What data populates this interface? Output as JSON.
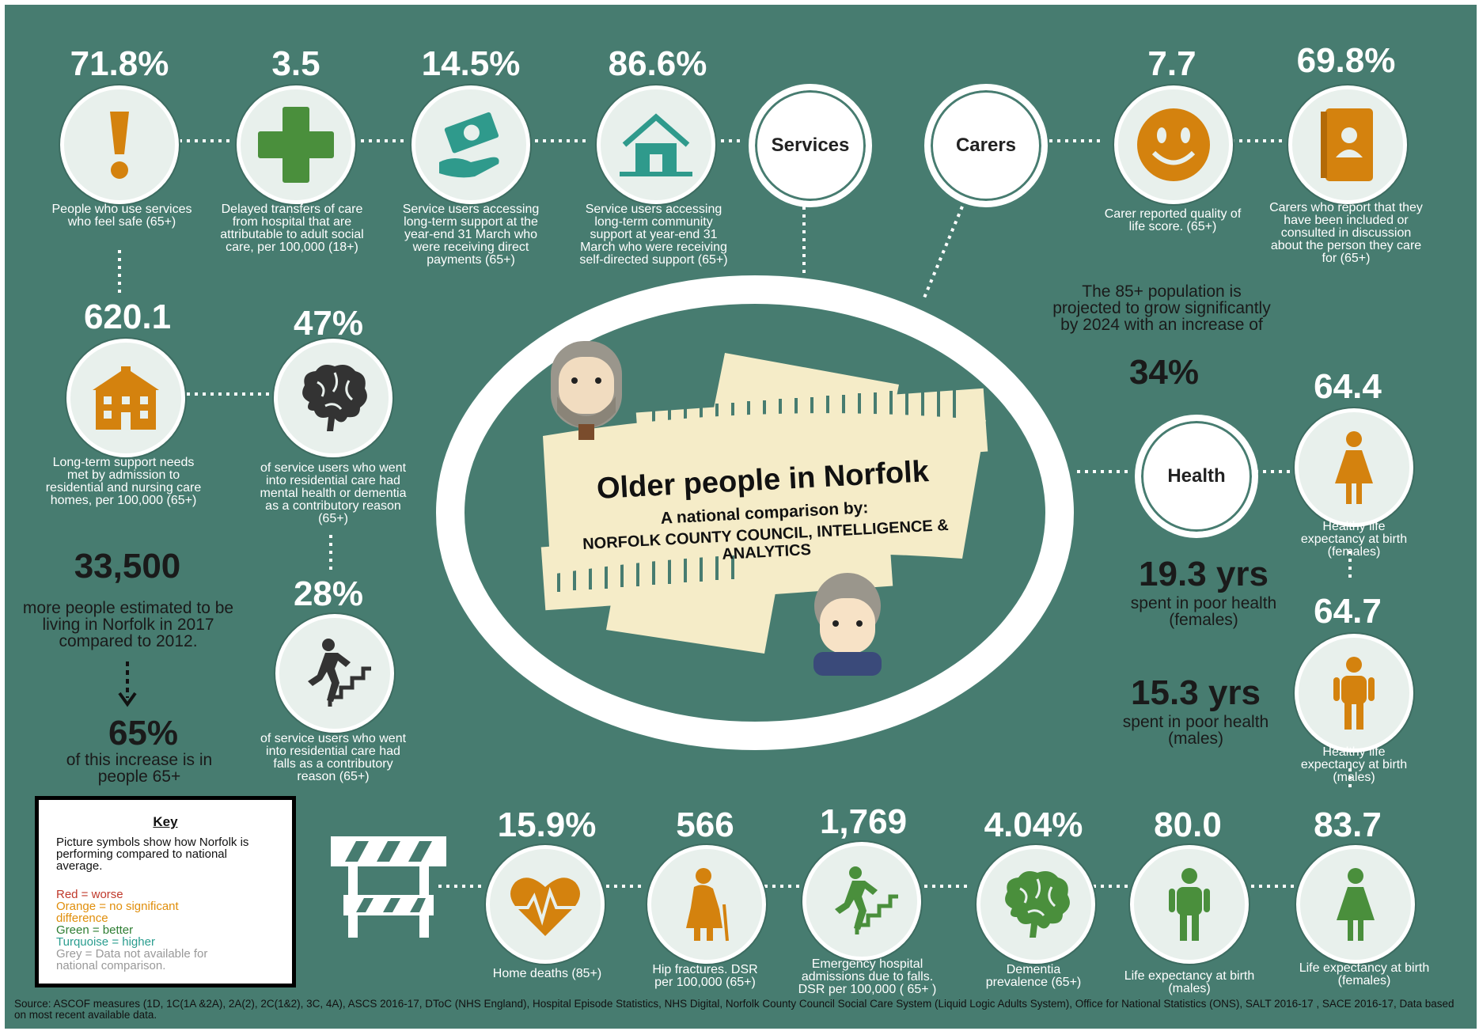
{
  "center": {
    "title": "Older people in Norfolk",
    "subtitle": "A national comparison by:",
    "org": "NORFOLK COUNTY COUNCIL, INTELLIGENCE & ANALYTICS"
  },
  "hubs": {
    "services": "Services",
    "carers": "Carers",
    "health": "Health"
  },
  "top_stats": [
    {
      "value": "71.8%",
      "caption": "People who use services who feel safe (65+)",
      "icon": "exclamation-icon",
      "color": "#d4820e"
    },
    {
      "value": "3.5",
      "caption": "Delayed transfers of care from hospital that are attributable to adult social care, per 100,000 (18+)",
      "icon": "plus-cross-icon",
      "color": "#4a8f3c"
    },
    {
      "value": "14.5%",
      "caption": "Service users accessing long-term support at the year-end 31 March who were receiving direct payments (65+)",
      "icon": "money-hand-icon",
      "color": "#2f9a8c"
    },
    {
      "value": "86.6%",
      "caption": "Service users accessing long-term community support at year-end 31 March who were receiving self-directed support (65+)",
      "icon": "house-icon",
      "color": "#2f9a8c"
    }
  ],
  "carer_stats": [
    {
      "value": "7.7",
      "caption": "Carer reported quality of life score. (65+)",
      "icon": "smiley-icon",
      "color": "#d4820e"
    },
    {
      "value": "69.8%",
      "caption": "Carers who report that they have been included or consulted in discussion about the person they care for (65+)",
      "icon": "contact-book-icon",
      "color": "#d4820e"
    }
  ],
  "left_stats": [
    {
      "value": "620.1",
      "caption": "Long-term support needs met by admission to residential and nursing care homes, per 100,000 (65+)",
      "icon": "care-home-icon",
      "color": "#d4820e"
    },
    {
      "value": "47%",
      "caption": "of service users who went into residential care  had mental health or dementia as a contributory reason (65+)",
      "icon": "brain-icon",
      "color": "#333333"
    },
    {
      "value": "28%",
      "caption": "of service users who went into residential care  had falls as a contributory reason (65+)",
      "icon": "stairs-icon",
      "color": "#333333"
    }
  ],
  "population": {
    "value": "33,500",
    "text": "more people estimated to be living in Norfolk in 2017 compared to 2012.",
    "pct": "65%",
    "pct_text": "of this increase is in people 65+"
  },
  "growth": {
    "text": "The 85+ population is projected to grow significantly by 2024 with an increase of",
    "value": "34%"
  },
  "health_right": [
    {
      "value": "64.4",
      "caption": "Healthy life expectancy at birth (females)",
      "icon": "female-figure-icon",
      "color": "#d4820e"
    },
    {
      "value": "64.7",
      "caption": "Healthy life expectancy at birth (males)",
      "icon": "male-figure-icon",
      "color": "#d4820e"
    }
  ],
  "poor_health": [
    {
      "value": "19.3 yrs",
      "text": "spent in poor health (females)"
    },
    {
      "value": "15.3 yrs",
      "text": "spent in poor health (males)"
    }
  ],
  "bottom_stats": [
    {
      "value": "15.9%",
      "caption": "Home deaths (85+)",
      "icon": "heartbeat-icon",
      "color": "#d4820e"
    },
    {
      "value": "566",
      "caption": "Hip fractures. DSR per 100,000 (65+)",
      "icon": "elderly-woman-icon",
      "color": "#d4820e"
    },
    {
      "value": "1,769",
      "caption": "Emergency hospital admissions due to falls. DSR per 100,000 ( 65+ )",
      "icon": "stairs-icon",
      "color": "#4a8f3c"
    },
    {
      "value": "4.04%",
      "caption": "Dementia prevalence (65+)",
      "icon": "brain-icon",
      "color": "#4a8f3c"
    },
    {
      "value": "80.0",
      "caption": "Life expectancy at birth (males)",
      "icon": "male-figure-icon",
      "color": "#4a8f3c"
    },
    {
      "value": "83.7",
      "caption": "Life expectancy at birth (females)",
      "icon": "female-figure-icon",
      "color": "#4a8f3c"
    }
  ],
  "key": {
    "title": "Key",
    "description": "Picture symbols show how Norfolk is performing compared to national average.",
    "items": [
      {
        "label": "Red = worse",
        "color": "#c0392b"
      },
      {
        "label": "Orange = no significant difference",
        "color": "#e08e0b"
      },
      {
        "label": "Green = better",
        "color": "#2e7d32"
      },
      {
        "label": "Turquoise = higher",
        "color": "#2a9d8f"
      },
      {
        "label": "Grey = Data not available for national comparison.",
        "color": "#999999"
      }
    ]
  },
  "source": "Source: ASCOF measures (1D, 1C(1A &2A), 2A(2), 2C(1&2), 3C, 4A), ASCS 2016-17, DToC (NHS England), Hospital Episode Statistics, NHS Digital, Norfolk County Council Social Care System (Liquid Logic Adults System), Office for National Statistics (ONS),  SALT 2016-17 , SACE 2016-17, Data based on most recent available data."
}
